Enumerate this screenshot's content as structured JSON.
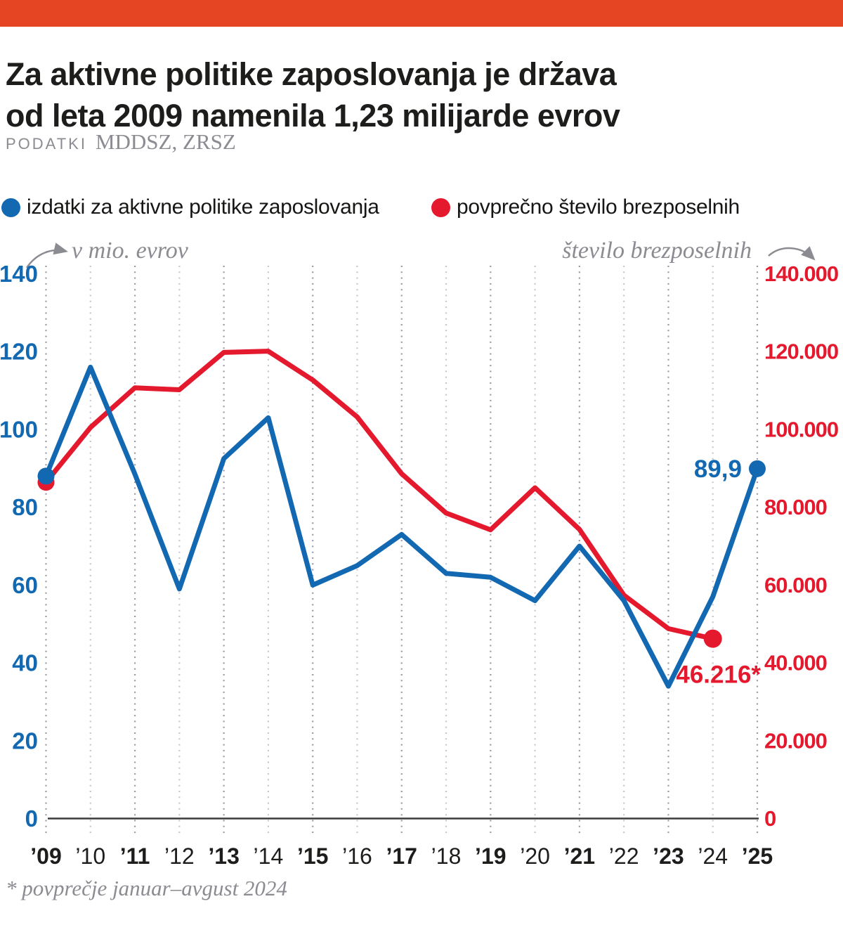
{
  "page": {
    "background": "#ffffff",
    "accent_bar_color": "#e64524"
  },
  "header": {
    "title_line1": "Za aktivne politike zaposlovanja je država",
    "title_line2": "od leta 2009 namenila 1,23 milijarde evrov",
    "source_label": "PODATKI",
    "source_value": "MDDSZ, ZRSZ"
  },
  "legend": {
    "items": [
      {
        "label": "izdatki za aktivne politike zaposlovanja",
        "color": "#1268b1"
      },
      {
        "label": "povprečno število brezposelnih",
        "color": "#e5192d"
      }
    ]
  },
  "axis_captions": {
    "left": "v mio. evrov",
    "right": "število brezposelnih",
    "left_arrow_icon": "curved-arrow-up-right",
    "right_arrow_icon": "curved-arrow-down-right"
  },
  "chart_data": {
    "type": "line",
    "title": "Za aktivne politike zaposlovanja je država od leta 2009 namenila 1,23 milijarde evrov",
    "grid": "vertical-dotted",
    "x_labels": [
      "’09",
      "’10",
      "’11",
      "’12",
      "’13",
      "’14",
      "’15",
      "’16",
      "’17",
      "’18",
      "’19",
      "’20",
      "’21",
      "’22",
      "’23",
      "’24",
      "’25"
    ],
    "left_axis": {
      "label": "v mio. evrov",
      "unit": "mio EUR",
      "min": 0,
      "max": 140,
      "ticks": [
        "140",
        "120",
        "100",
        "80",
        "60",
        "40",
        "20",
        "0"
      ],
      "color": "#1268b1"
    },
    "right_axis": {
      "label": "število brezposelnih",
      "unit": "oseb",
      "min": 0,
      "max": 140000,
      "ticks": [
        "140.000",
        "120.000",
        "100.000",
        "80.000",
        "60.000",
        "40.000",
        "20.000",
        "0"
      ],
      "color": "#e5192d"
    },
    "series": [
      {
        "name": "izdatki za aktivne politike zaposlovanja",
        "axis": "left",
        "color": "#1268b1",
        "values": [
          88,
          116,
          88.5,
          59,
          92.5,
          103,
          60,
          65,
          73,
          63,
          62,
          56,
          70,
          56,
          34,
          57,
          89.9
        ],
        "end_label": "89,9"
      },
      {
        "name": "povprečno število brezposelnih",
        "axis": "right",
        "color": "#e5192d",
        "values": [
          86400,
          100500,
          110700,
          110200,
          119800,
          120100,
          112700,
          103200,
          88600,
          78500,
          74200,
          85000,
          74300,
          57400,
          48800,
          46216
        ],
        "end_label": "46.216*"
      }
    ]
  },
  "footnote": "* povprečje januar–avgust 2024"
}
